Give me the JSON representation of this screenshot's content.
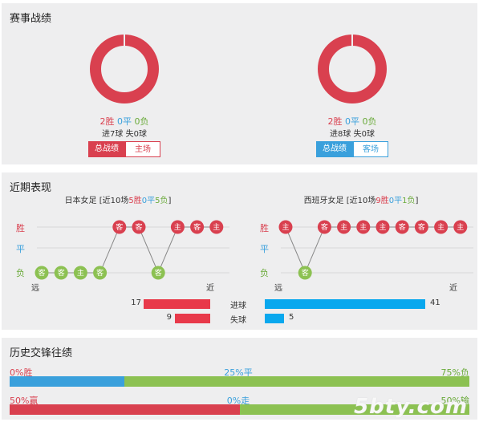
{
  "section1": {
    "title": "赛事战绩",
    "left": {
      "wins": "2胜",
      "draws": "0平",
      "losses": "0负",
      "goals": "进7球",
      "conceded": "失0球",
      "tab_active": "总战绩",
      "tab_other": "主场"
    },
    "right": {
      "wins": "2胜",
      "draws": "0平",
      "losses": "0负",
      "goals": "进8球",
      "conceded": "失0球",
      "tab_active": "总战绩",
      "tab_other": "客场"
    }
  },
  "section2": {
    "title": "近期表现",
    "left": {
      "team": "日本女足",
      "summary_prefix": "[近10场",
      "w": "5胜",
      "d": "0平",
      "l": "5负",
      "summary_suffix": "]",
      "results": [
        {
          "r": "L",
          "v": "客"
        },
        {
          "r": "L",
          "v": "客"
        },
        {
          "r": "L",
          "v": "主"
        },
        {
          "r": "L",
          "v": "客"
        },
        {
          "r": "W",
          "v": "客"
        },
        {
          "r": "W",
          "v": "客"
        },
        {
          "r": "L",
          "v": "客"
        },
        {
          "r": "W",
          "v": "主"
        },
        {
          "r": "W",
          "v": "客"
        },
        {
          "r": "W",
          "v": "主"
        }
      ]
    },
    "right": {
      "team": "西班牙女足",
      "summary_prefix": "[近10场",
      "w": "9胜",
      "d": "0平",
      "l": "1负",
      "summary_suffix": "]",
      "results": [
        {
          "r": "W",
          "v": "主"
        },
        {
          "r": "L",
          "v": "客"
        },
        {
          "r": "W",
          "v": "客"
        },
        {
          "r": "W",
          "v": "主"
        },
        {
          "r": "W",
          "v": "主"
        },
        {
          "r": "W",
          "v": "主"
        },
        {
          "r": "W",
          "v": "客"
        },
        {
          "r": "W",
          "v": "客"
        },
        {
          "r": "W",
          "v": "主"
        },
        {
          "r": "W",
          "v": "主"
        }
      ]
    },
    "y_labels": {
      "win": "胜",
      "draw": "平",
      "loss": "负"
    },
    "x_labels": {
      "far": "远",
      "near": "近"
    },
    "goals_label": "进球",
    "conceded_label": "失球",
    "left_goals": 17,
    "left_conceded": 9,
    "right_goals": 41,
    "right_conceded": 5,
    "bar_max": 41,
    "colors": {
      "win": "#d9404f",
      "draw": "#3aa0dc",
      "loss": "#8cc152",
      "red_bar": "#e8394a",
      "blue_bar": "#09a8ee"
    }
  },
  "section3": {
    "title": "历史交锋往绩",
    "row1": {
      "left": "0%胜",
      "mid": "25%平",
      "right": "75%负",
      "win_pct": 0,
      "draw_pct": 25,
      "loss_pct": 75
    },
    "row2": {
      "left": "50%赢",
      "mid": "0%走",
      "right": "50%输",
      "win_pct": 50,
      "draw_pct": 0,
      "loss_pct": 50
    }
  },
  "watermark": "5bty.com"
}
